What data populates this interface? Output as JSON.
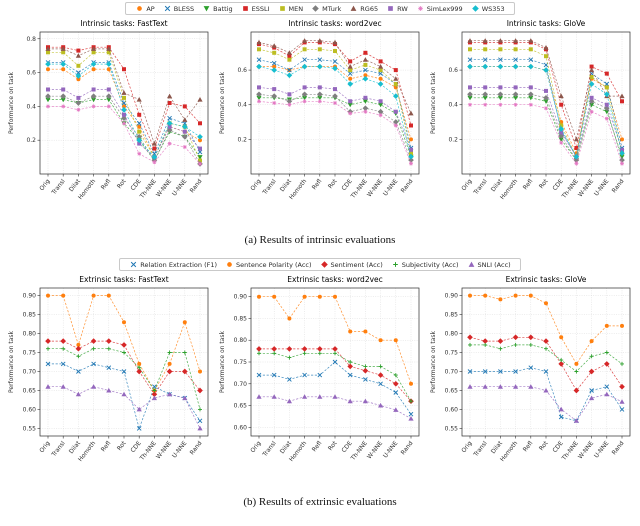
{
  "captions": {
    "a": "(a) Results of intrinsic evaluations",
    "b": "(b) Results of extrinsic evaluations"
  },
  "legends": {
    "intrinsic": [
      {
        "label": "AP",
        "color": "#ff7f0e",
        "marker": "circle"
      },
      {
        "label": "BLESS",
        "color": "#1f77b4",
        "marker": "x"
      },
      {
        "label": "Battig",
        "color": "#2ca02c",
        "marker": "triangle-down"
      },
      {
        "label": "ESSLI",
        "color": "#d62728",
        "marker": "square"
      },
      {
        "label": "MEN",
        "color": "#bcbd22",
        "marker": "square"
      },
      {
        "label": "MTurk",
        "color": "#7f7f7f",
        "marker": "diamond"
      },
      {
        "label": "RG65",
        "color": "#8c564b",
        "marker": "triangle-up"
      },
      {
        "label": "RW",
        "color": "#9467bd",
        "marker": "square"
      },
      {
        "label": "SimLex999",
        "color": "#e377c2",
        "marker": "star"
      },
      {
        "label": "WS353",
        "color": "#17becf",
        "marker": "diamond"
      }
    ],
    "extrinsic": [
      {
        "label": "Relation Extraction (F1)",
        "color": "#1f77b4",
        "marker": "x"
      },
      {
        "label": "Sentence Polarity (Acc)",
        "color": "#ff7f0e",
        "marker": "circle"
      },
      {
        "label": "Sentiment (Acc)",
        "color": "#d62728",
        "marker": "diamond"
      },
      {
        "label": "Subjectivity (Acc)",
        "color": "#2ca02c",
        "marker": "plus"
      },
      {
        "label": "SNLI (Acc)",
        "color": "#9467bd",
        "marker": "triangle-up"
      }
    ]
  },
  "chart_data": [
    {
      "type": "line",
      "group": "intrinsic",
      "title": "Intrinsic tasks: FastText",
      "ylabel": "Performance on task",
      "categories": [
        "Orig",
        "Transl",
        "Dilat",
        "Homoth",
        "Refl",
        "Rot",
        "CDE",
        "Th-NNE",
        "W-NNE",
        "U-NNE",
        "Rand"
      ],
      "ylim": [
        0.0,
        0.84
      ],
      "yticks": [
        "0.2",
        "0.4",
        "0.6",
        "0.8"
      ],
      "grid": true,
      "series": [
        {
          "name": "AP",
          "values": [
            0.62,
            0.62,
            0.56,
            0.62,
            0.62,
            0.4,
            0.28,
            0.1,
            0.28,
            0.25,
            0.2
          ]
        },
        {
          "name": "BLESS",
          "values": [
            0.66,
            0.66,
            0.6,
            0.66,
            0.66,
            0.42,
            0.3,
            0.12,
            0.33,
            0.3,
            0.13
          ]
        },
        {
          "name": "Battig",
          "values": [
            0.44,
            0.44,
            0.42,
            0.44,
            0.44,
            0.3,
            0.2,
            0.08,
            0.25,
            0.22,
            0.1
          ]
        },
        {
          "name": "ESSLI",
          "values": [
            0.75,
            0.75,
            0.73,
            0.75,
            0.75,
            0.62,
            0.35,
            0.15,
            0.42,
            0.4,
            0.3
          ]
        },
        {
          "name": "MEN",
          "values": [
            0.72,
            0.72,
            0.64,
            0.72,
            0.72,
            0.45,
            0.25,
            0.1,
            0.3,
            0.28,
            0.08
          ]
        },
        {
          "name": "MTurk",
          "values": [
            0.46,
            0.46,
            0.42,
            0.46,
            0.46,
            0.33,
            0.22,
            0.08,
            0.26,
            0.22,
            0.06
          ]
        },
        {
          "name": "RG65",
          "values": [
            0.74,
            0.74,
            0.7,
            0.74,
            0.74,
            0.48,
            0.44,
            0.18,
            0.46,
            0.32,
            0.44
          ]
        },
        {
          "name": "RW",
          "values": [
            0.5,
            0.5,
            0.45,
            0.5,
            0.5,
            0.35,
            0.18,
            0.1,
            0.28,
            0.25,
            0.15
          ]
        },
        {
          "name": "SimLex999",
          "values": [
            0.4,
            0.4,
            0.38,
            0.4,
            0.4,
            0.3,
            0.12,
            0.07,
            0.18,
            0.16,
            0.06
          ]
        },
        {
          "name": "WS353",
          "values": [
            0.65,
            0.65,
            0.58,
            0.65,
            0.65,
            0.38,
            0.2,
            0.1,
            0.3,
            0.28,
            0.22
          ]
        }
      ]
    },
    {
      "type": "line",
      "group": "intrinsic",
      "title": "Intrinsic tasks: word2vec",
      "ylabel": "Performance on task",
      "categories": [
        "Orig",
        "Transl",
        "Dilat",
        "Homoth",
        "Refl",
        "Rot",
        "CDE",
        "Th-NNE",
        "W-NNE",
        "U-NNE",
        "Rand"
      ],
      "ylim": [
        0.0,
        0.82
      ],
      "yticks": [
        "0.2",
        "0.4",
        "0.6"
      ],
      "grid": true,
      "series": [
        {
          "name": "AP",
          "values": [
            0.62,
            0.62,
            0.6,
            0.62,
            0.62,
            0.62,
            0.55,
            0.57,
            0.55,
            0.5,
            0.2
          ]
        },
        {
          "name": "BLESS",
          "values": [
            0.66,
            0.64,
            0.6,
            0.66,
            0.66,
            0.65,
            0.58,
            0.6,
            0.58,
            0.52,
            0.15
          ]
        },
        {
          "name": "Battig",
          "values": [
            0.44,
            0.44,
            0.43,
            0.44,
            0.44,
            0.44,
            0.4,
            0.42,
            0.4,
            0.35,
            0.1
          ]
        },
        {
          "name": "ESSLI",
          "values": [
            0.75,
            0.73,
            0.68,
            0.76,
            0.76,
            0.75,
            0.65,
            0.7,
            0.65,
            0.6,
            0.28
          ]
        },
        {
          "name": "MEN",
          "values": [
            0.72,
            0.7,
            0.66,
            0.72,
            0.72,
            0.71,
            0.6,
            0.63,
            0.6,
            0.52,
            0.12
          ]
        },
        {
          "name": "MTurk",
          "values": [
            0.46,
            0.45,
            0.42,
            0.46,
            0.46,
            0.45,
            0.36,
            0.38,
            0.36,
            0.3,
            0.08
          ]
        },
        {
          "name": "RG65",
          "values": [
            0.76,
            0.74,
            0.7,
            0.77,
            0.77,
            0.76,
            0.62,
            0.66,
            0.62,
            0.55,
            0.35
          ]
        },
        {
          "name": "RW",
          "values": [
            0.5,
            0.49,
            0.46,
            0.5,
            0.5,
            0.49,
            0.42,
            0.44,
            0.42,
            0.36,
            0.14
          ]
        },
        {
          "name": "SimLex999",
          "values": [
            0.42,
            0.41,
            0.4,
            0.42,
            0.42,
            0.41,
            0.35,
            0.36,
            0.34,
            0.28,
            0.06
          ]
        },
        {
          "name": "WS353",
          "values": [
            0.62,
            0.6,
            0.57,
            0.62,
            0.62,
            0.61,
            0.52,
            0.55,
            0.52,
            0.45,
            0.1
          ]
        }
      ]
    },
    {
      "type": "line",
      "group": "intrinsic",
      "title": "Intrinsic tasks: GloVe",
      "ylabel": "Performance on task",
      "categories": [
        "Orig",
        "Transl",
        "Dilat",
        "Homoth",
        "Refl",
        "Rot",
        "CDE",
        "Th-NNE",
        "W-NNE",
        "U-NNE",
        "Rand"
      ],
      "ylim": [
        0.0,
        0.82
      ],
      "yticks": [
        "0.2",
        "0.4",
        "0.6"
      ],
      "grid": true,
      "series": [
        {
          "name": "AP",
          "values": [
            0.62,
            0.62,
            0.62,
            0.62,
            0.62,
            0.6,
            0.3,
            0.12,
            0.55,
            0.5,
            0.2
          ]
        },
        {
          "name": "BLESS",
          "values": [
            0.66,
            0.66,
            0.66,
            0.66,
            0.66,
            0.63,
            0.25,
            0.1,
            0.58,
            0.52,
            0.15
          ]
        },
        {
          "name": "Battig",
          "values": [
            0.44,
            0.44,
            0.44,
            0.44,
            0.44,
            0.42,
            0.2,
            0.08,
            0.4,
            0.36,
            0.1
          ]
        },
        {
          "name": "ESSLI",
          "values": [
            0.76,
            0.76,
            0.76,
            0.76,
            0.76,
            0.72,
            0.4,
            0.15,
            0.62,
            0.58,
            0.42
          ]
        },
        {
          "name": "MEN",
          "values": [
            0.72,
            0.72,
            0.72,
            0.72,
            0.72,
            0.68,
            0.28,
            0.1,
            0.56,
            0.5,
            0.12
          ]
        },
        {
          "name": "MTurk",
          "values": [
            0.46,
            0.46,
            0.46,
            0.46,
            0.46,
            0.44,
            0.22,
            0.08,
            0.42,
            0.38,
            0.08
          ]
        },
        {
          "name": "RG65",
          "values": [
            0.77,
            0.77,
            0.77,
            0.77,
            0.77,
            0.73,
            0.45,
            0.2,
            0.6,
            0.45,
            0.45
          ]
        },
        {
          "name": "RW",
          "values": [
            0.5,
            0.5,
            0.5,
            0.5,
            0.5,
            0.48,
            0.24,
            0.1,
            0.44,
            0.4,
            0.14
          ]
        },
        {
          "name": "SimLex999",
          "values": [
            0.4,
            0.4,
            0.4,
            0.4,
            0.4,
            0.38,
            0.18,
            0.06,
            0.36,
            0.32,
            0.06
          ]
        },
        {
          "name": "WS353",
          "values": [
            0.62,
            0.62,
            0.62,
            0.62,
            0.62,
            0.6,
            0.26,
            0.1,
            0.52,
            0.46,
            0.12
          ]
        }
      ]
    },
    {
      "type": "line",
      "group": "extrinsic",
      "title": "Extrinsic tasks: FastText",
      "ylabel": "Performance on task",
      "categories": [
        "Orig",
        "Transl",
        "Dilat",
        "Homoth",
        "Refl",
        "Rot",
        "CDE",
        "Th-NNE",
        "W-NNE",
        "U-NNE",
        "Rand"
      ],
      "ylim": [
        0.53,
        0.92
      ],
      "yticks": [
        "0.55",
        "0.60",
        "0.65",
        "0.70",
        "0.75",
        "0.80",
        "0.85",
        "0.90"
      ],
      "grid": true,
      "series": [
        {
          "name": "Relation Extraction (F1)",
          "values": [
            0.72,
            0.72,
            0.7,
            0.72,
            0.71,
            0.7,
            0.55,
            0.66,
            0.64,
            0.63,
            0.57
          ]
        },
        {
          "name": "Sentence Polarity (Acc)",
          "values": [
            0.9,
            0.9,
            0.77,
            0.9,
            0.9,
            0.83,
            0.72,
            0.65,
            0.72,
            0.83,
            0.7
          ]
        },
        {
          "name": "Sentiment (Acc)",
          "values": [
            0.78,
            0.78,
            0.76,
            0.78,
            0.78,
            0.77,
            0.7,
            0.64,
            0.7,
            0.7,
            0.65
          ]
        },
        {
          "name": "Subjectivity (Acc)",
          "values": [
            0.76,
            0.76,
            0.74,
            0.76,
            0.76,
            0.75,
            0.71,
            0.65,
            0.75,
            0.75,
            0.6
          ]
        },
        {
          "name": "SNLI (Acc)",
          "values": [
            0.66,
            0.66,
            0.64,
            0.66,
            0.65,
            0.64,
            0.6,
            0.63,
            0.64,
            0.63,
            0.55
          ]
        }
      ]
    },
    {
      "type": "line",
      "group": "extrinsic",
      "title": "Extrinsic tasks: word2vec",
      "ylabel": "Performance on task",
      "categories": [
        "Orig",
        "Transl",
        "Dilat",
        "Homoth",
        "Refl",
        "Rot",
        "CDE",
        "Th-NNE",
        "W-NNE",
        "U-NNE",
        "Rand"
      ],
      "ylim": [
        0.58,
        0.92
      ],
      "yticks": [
        "0.60",
        "0.65",
        "0.70",
        "0.75",
        "0.80",
        "0.85",
        "0.90"
      ],
      "grid": true,
      "series": [
        {
          "name": "Relation Extraction (F1)",
          "values": [
            0.72,
            0.72,
            0.71,
            0.72,
            0.72,
            0.75,
            0.72,
            0.71,
            0.7,
            0.68,
            0.63
          ]
        },
        {
          "name": "Sentence Polarity (Acc)",
          "values": [
            0.9,
            0.9,
            0.85,
            0.9,
            0.9,
            0.9,
            0.82,
            0.82,
            0.8,
            0.8,
            0.7
          ]
        },
        {
          "name": "Sentiment (Acc)",
          "values": [
            0.78,
            0.78,
            0.78,
            0.78,
            0.78,
            0.78,
            0.74,
            0.73,
            0.72,
            0.7,
            0.66
          ]
        },
        {
          "name": "Subjectivity (Acc)",
          "values": [
            0.77,
            0.77,
            0.76,
            0.77,
            0.77,
            0.77,
            0.75,
            0.74,
            0.74,
            0.72,
            0.66
          ]
        },
        {
          "name": "SNLI (Acc)",
          "values": [
            0.67,
            0.67,
            0.66,
            0.67,
            0.67,
            0.67,
            0.66,
            0.66,
            0.65,
            0.64,
            0.62
          ]
        }
      ]
    },
    {
      "type": "line",
      "group": "extrinsic",
      "title": "Extrinsic tasks: GloVe",
      "ylabel": "Performance on task",
      "categories": [
        "Orig",
        "Transl",
        "Dilat",
        "Homoth",
        "Refl",
        "Rot",
        "CDE",
        "Th-NNE",
        "W-NNE",
        "U-NNE",
        "Rand"
      ],
      "ylim": [
        0.53,
        0.92
      ],
      "yticks": [
        "0.55",
        "0.60",
        "0.65",
        "0.70",
        "0.75",
        "0.80",
        "0.85",
        "0.90"
      ],
      "grid": true,
      "series": [
        {
          "name": "Relation Extraction (F1)",
          "values": [
            0.7,
            0.7,
            0.7,
            0.7,
            0.71,
            0.7,
            0.58,
            0.57,
            0.65,
            0.66,
            0.6
          ]
        },
        {
          "name": "Sentence Polarity (Acc)",
          "values": [
            0.9,
            0.9,
            0.89,
            0.9,
            0.9,
            0.88,
            0.79,
            0.72,
            0.78,
            0.82,
            0.82
          ]
        },
        {
          "name": "Sentiment (Acc)",
          "values": [
            0.79,
            0.78,
            0.78,
            0.79,
            0.79,
            0.78,
            0.72,
            0.65,
            0.7,
            0.72,
            0.66
          ]
        },
        {
          "name": "Subjectivity (Acc)",
          "values": [
            0.77,
            0.77,
            0.76,
            0.77,
            0.77,
            0.76,
            0.73,
            0.7,
            0.74,
            0.75,
            0.72
          ]
        },
        {
          "name": "SNLI (Acc)",
          "values": [
            0.66,
            0.66,
            0.66,
            0.66,
            0.66,
            0.65,
            0.6,
            0.57,
            0.63,
            0.64,
            0.62
          ]
        }
      ]
    }
  ]
}
